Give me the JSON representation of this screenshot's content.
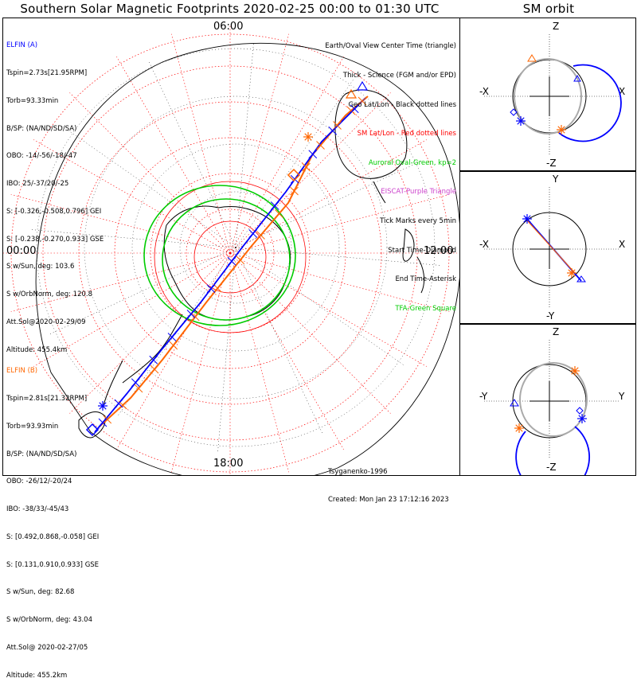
{
  "title": "Southern Solar Magnetic Footprints 2020-02-25 00:00 to 01:30 UTC",
  "sm_title": "SM orbit",
  "clock_labels": {
    "top": "06:00",
    "left": "00:00",
    "right": "12:00",
    "bottom": "18:00"
  },
  "legend": [
    {
      "text": "Earth/Oval View Center Time (triangle)",
      "color": "#000000"
    },
    {
      "text": "Thick - Science (FGM and/or EPD)",
      "color": "#000000"
    },
    {
      "text": "Geo Lat/Lon - Black dotted lines",
      "color": "#000000"
    },
    {
      "text": "SM Lat/Lon - Red dotted lines",
      "color": "#ff0000"
    },
    {
      "text": "Auroral Oval-Green, kp=2",
      "color": "#00cc00"
    },
    {
      "text": "EISCAT-Purple Triangle",
      "color": "#cc44cc"
    },
    {
      "text": "Tick Marks every 5min",
      "color": "#000000"
    },
    {
      "text": "Start Time-Diamond",
      "color": "#000000"
    },
    {
      "text": "End Time-Asterisk",
      "color": "#000000"
    },
    {
      "text": "TFA-Green Square",
      "color": "#00cc00"
    }
  ],
  "elfin_a": {
    "name": "ELFIN (A)",
    "color": "#0000ff",
    "lines": [
      "Tspin=2.73s[21.95RPM]",
      "Torb=93.33min",
      "B/SP: (NA/ND/SD/SA)",
      "OBO: -14/-56/-18/-47",
      "IBO: 25/-37/20/-25",
      "S: [-0.326,-0.508,0.796] GEI",
      "S: [-0.238,-0.270,0.933] GSE",
      "S w/Sun, deg: 103.6",
      "S w/OrbNorm, deg: 120.8",
      "Att.Sol@2020-02-29/09",
      "Altitude: 455.4km"
    ]
  },
  "elfin_b": {
    "name": "ELFIN (B)",
    "color": "#ff6600",
    "lines": [
      "Tspin=2.81s[21.32RPM]",
      "Torb=93.93min",
      "B/SP: (NA/ND/SD/SA)",
      "OBO: -26/12/-20/24",
      "IBO: -38/33/-45/43",
      "S: [0.492,0.868,-0.058] GEI",
      "S: [0.131,0.910,0.933] GSE",
      "S w/Sun, deg: 82.68",
      "S w/OrbNorm, deg: 43.04",
      "Att.Sol@ 2020-02-27/05",
      "Altitude: 455.2km"
    ]
  },
  "credit": {
    "author": "Tsyganenko-1996",
    "created": "Created: Mon Jan 23 17:12:16 2023"
  },
  "sm_panels": [
    {
      "top": "Z",
      "bottom": "-Z",
      "left": "-X",
      "right": "X"
    },
    {
      "top": "Y",
      "bottom": "-Y",
      "left": "-X",
      "right": "X"
    },
    {
      "top": "Z",
      "bottom": "-Z",
      "left": "-Y",
      "right": "Y"
    }
  ],
  "colors": {
    "elfin_a": "#0000ff",
    "elfin_b": "#ff6600",
    "sm_grid": "#ff0000",
    "geo_grid": "#000000",
    "oval": "#00cc00"
  }
}
